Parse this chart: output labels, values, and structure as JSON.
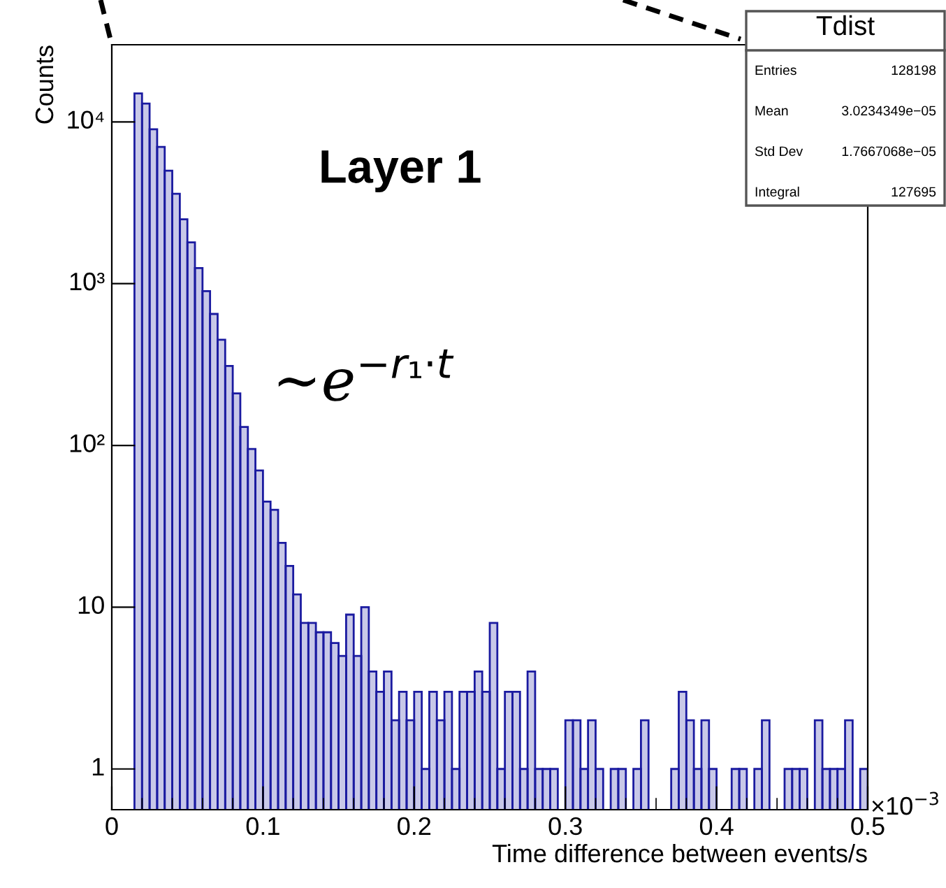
{
  "chart_data": {
    "type": "histogram",
    "xlabel": "Time difference between events/s",
    "ylabel": "Counts",
    "bins": [
      0.015,
      0.02,
      0.025,
      0.03,
      0.035,
      0.04,
      0.045,
      0.05,
      0.055,
      0.06,
      0.065,
      0.07,
      0.075,
      0.08,
      0.085,
      0.09,
      0.095,
      0.1,
      0.105,
      0.11,
      0.115,
      0.12,
      0.125,
      0.13,
      0.135,
      0.14,
      0.145,
      0.15,
      0.155,
      0.16,
      0.165,
      0.17,
      0.175,
      0.18,
      0.185,
      0.19,
      0.195,
      0.2,
      0.205,
      0.21,
      0.215,
      0.22,
      0.225,
      0.23,
      0.235,
      0.24,
      0.245,
      0.25,
      0.255,
      0.26,
      0.265,
      0.27,
      0.275,
      0.28,
      0.285,
      0.29,
      0.295,
      0.3,
      0.305,
      0.31,
      0.315,
      0.32,
      0.325,
      0.33,
      0.335,
      0.34,
      0.345,
      0.35,
      0.355,
      0.36,
      0.365,
      0.37,
      0.375,
      0.38,
      0.385,
      0.39,
      0.395,
      0.4,
      0.405,
      0.41,
      0.415,
      0.42,
      0.425,
      0.43,
      0.435,
      0.44,
      0.445,
      0.45,
      0.455,
      0.46,
      0.465,
      0.47,
      0.475,
      0.48,
      0.485,
      0.49,
      0.495,
      0.5
    ],
    "values": [
      15000,
      13000,
      9000,
      7000,
      5000,
      3600,
      2500,
      1800,
      1250,
      900,
      650,
      450,
      310,
      210,
      130,
      95,
      70,
      45,
      40,
      25,
      18,
      12,
      8,
      8,
      7,
      7,
      6,
      5,
      9,
      5,
      10,
      4,
      3,
      4,
      2,
      3,
      2,
      3,
      1,
      3,
      2,
      3,
      1,
      3,
      3,
      4,
      3,
      8,
      1,
      3,
      3,
      1,
      4,
      1,
      1,
      1,
      null,
      2,
      2,
      1,
      2,
      1,
      null,
      1,
      1,
      null,
      1,
      2,
      null,
      null,
      null,
      1,
      3,
      2,
      1,
      2,
      1,
      null,
      null,
      1,
      1,
      null,
      1,
      2,
      null,
      null,
      1,
      1,
      1,
      null,
      2,
      1,
      1,
      1,
      2,
      null,
      1
    ],
    "color": "#1a1aa0",
    "xlim": [
      0,
      0.5
    ],
    "xticks": [
      0,
      0.1,
      0.2,
      0.3,
      0.4,
      0.5
    ],
    "log": "y",
    "ylim": [
      0.56,
      30000
    ],
    "yticks": [
      1,
      10,
      {
        "value": 100,
        "label": "10²"
      },
      {
        "value": 1000,
        "label": "10³"
      },
      {
        "value": 10000,
        "label": "10⁴"
      }
    ],
    "grid": false,
    "legend": false,
    "annotations": [
      "Layer 1",
      "∼e$^{−r₁·t}$",
      "×10$^{−3}$",
      "Tdist",
      "Entries",
      "128198",
      "Mean",
      "3.0234349e−05",
      "Std Dev",
      "1.7667068e−05",
      "Integral",
      "127695"
    ]
  }
}
